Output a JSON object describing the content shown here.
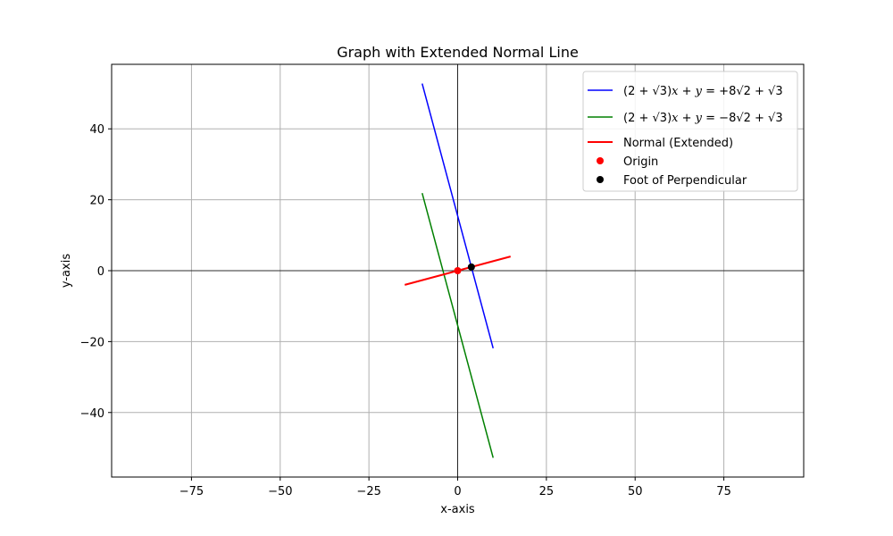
{
  "chart_data": {
    "type": "line",
    "title": "Graph with Extended Normal Line",
    "xlabel": "x-axis",
    "ylabel": "y-axis",
    "xlim": [
      -97.5,
      97.5
    ],
    "ylim": [
      -58.2,
      58.2
    ],
    "xticks": [
      -75,
      -50,
      -25,
      0,
      25,
      50,
      75
    ],
    "yticks": [
      -40,
      -20,
      0,
      20,
      40
    ],
    "xtick_labels": [
      "−75",
      "−50",
      "−25",
      "0",
      "25",
      "50",
      "75"
    ],
    "ytick_labels": [
      "−40",
      "−20",
      "0",
      "20",
      "40"
    ],
    "grid": true,
    "legend_position": "top-right",
    "series": [
      {
        "name": "(2+√3)x+y=+8√(2+√3)",
        "legend_parts": [
          "(2 + ",
          "√3",
          ")",
          "x",
          " + ",
          "y",
          " = +8",
          "√2 + √3"
        ],
        "color": "#0000ff",
        "kind": "line",
        "x": [
          -10,
          10
        ],
        "y": [
          52.77,
          -21.87
        ]
      },
      {
        "name": "(2+√3)x+y=−8√(2+√3)",
        "legend_parts": [
          "(2 + ",
          "√3",
          ")",
          "x",
          " + ",
          "y",
          " = −8",
          "√2 + √3"
        ],
        "color": "#008000",
        "kind": "line",
        "x": [
          -10,
          10
        ],
        "y": [
          21.87,
          -52.77
        ]
      },
      {
        "name": "Normal (Extended)",
        "color": "#ff0000",
        "kind": "line",
        "x": [
          -14.91,
          14.91
        ],
        "y": [
          -4.0,
          4.0
        ]
      },
      {
        "name": "Origin",
        "color": "#ff0000",
        "kind": "point",
        "x": [
          0
        ],
        "y": [
          0
        ]
      },
      {
        "name": "Foot of Perpendicular",
        "color": "#000000",
        "kind": "point",
        "x": [
          3.86
        ],
        "y": [
          1.04
        ]
      }
    ]
  }
}
